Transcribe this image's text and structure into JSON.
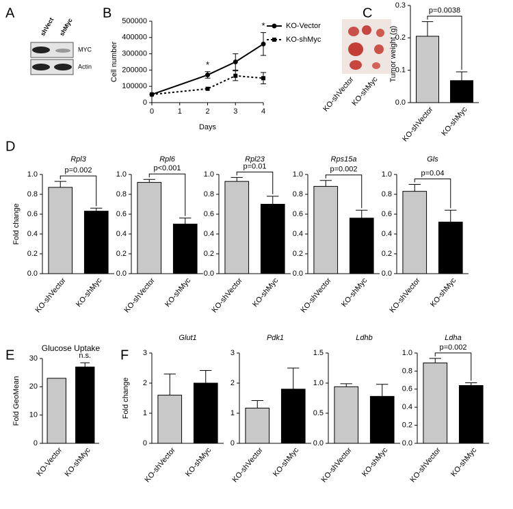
{
  "panel_labels": [
    "A",
    "B",
    "C",
    "D",
    "E",
    "F"
  ],
  "blot": {
    "lanes": [
      "shVect",
      "shMyc"
    ],
    "bands": [
      "MYC",
      "Actin"
    ]
  },
  "photo": {
    "labels": [
      "KO-shVector",
      "KO-shMyc"
    ]
  },
  "chart_data": [
    {
      "type": "line",
      "xlabel": "Days",
      "ylabel": "Cell number",
      "x": [
        0,
        2,
        3,
        4
      ],
      "xlim": [
        0,
        4
      ],
      "xticks": [
        0,
        1,
        2,
        3,
        4
      ],
      "ylim": [
        0,
        500000
      ],
      "yticks": [
        0,
        100000,
        200000,
        300000,
        400000,
        500000
      ],
      "series": [
        {
          "name": "KO-Vector",
          "color": "#000000",
          "values": [
            50000,
            170000,
            250000,
            360000
          ],
          "errors": [
            null,
            20000,
            50000,
            70000
          ]
        },
        {
          "name": "KO-shMyc",
          "color": "#000000",
          "values": [
            50000,
            85000,
            165000,
            150000
          ],
          "errors": [
            null,
            null,
            30000,
            35000
          ]
        }
      ],
      "annotations": [
        {
          "x": 2,
          "text": "*"
        },
        {
          "x": 4,
          "text": "*"
        }
      ]
    },
    {
      "type": "bar",
      "ylabel": "Tumor weight (g)",
      "categories": [
        "KO-shVector",
        "KO-shMyc"
      ],
      "values": [
        0.205,
        0.068
      ],
      "errors": [
        0.045,
        0.027
      ],
      "colors": [
        "#c8c8c8",
        "#000000"
      ],
      "ylim": [
        0,
        0.3
      ],
      "yticks": [
        {
          "value": 0,
          "label": "0.0"
        },
        0.1,
        0.2,
        0.3
      ],
      "annotation": "p=0.0038",
      "bracket": true
    },
    {
      "type": "bar",
      "title": "Rpl3",
      "title_style": "italic",
      "ylabel": "Fold change",
      "categories": [
        "KO-shVector",
        "KO-shMyc"
      ],
      "values": [
        0.87,
        0.63
      ],
      "errors": [
        0.06,
        0.03
      ],
      "colors": [
        "#c8c8c8",
        "#000000"
      ],
      "ylim": [
        0,
        1
      ],
      "yticks": [
        {
          "value": 0,
          "label": "0.0"
        },
        0.2,
        0.4,
        0.6,
        0.8,
        {
          "value": 1,
          "label": "1.0"
        }
      ],
      "annotation": "p=0.002",
      "bracket": true
    },
    {
      "type": "bar",
      "title": "Rpl6",
      "title_style": "italic",
      "categories": [
        "KO-shVector",
        "KO-shMyc"
      ],
      "values": [
        0.92,
        0.5
      ],
      "errors": [
        0.03,
        0.06
      ],
      "colors": [
        "#c8c8c8",
        "#000000"
      ],
      "ylim": [
        0,
        1
      ],
      "yticks": [
        {
          "value": 0,
          "label": "0.0"
        },
        0.2,
        0.4,
        0.6,
        0.8,
        {
          "value": 1,
          "label": "1.0"
        }
      ],
      "annotation": "p<0.001",
      "bracket": true
    },
    {
      "type": "bar",
      "title": "Rpl23",
      "title_style": "italic",
      "categories": [
        "KO-shVector",
        "KO-shMyc"
      ],
      "values": [
        0.93,
        0.7
      ],
      "errors": [
        0.04,
        0.08
      ],
      "colors": [
        "#c8c8c8",
        "#000000"
      ],
      "ylim": [
        0,
        1
      ],
      "yticks": [
        {
          "value": 0,
          "label": "0.0"
        },
        0.2,
        0.4,
        0.6,
        0.8,
        {
          "value": 1,
          "label": "1.0"
        }
      ],
      "annotation": "p=0.01",
      "bracket": true
    },
    {
      "type": "bar",
      "title": "Rps15a",
      "title_style": "italic",
      "categories": [
        "KO-shVector",
        "KO-shMyc"
      ],
      "values": [
        0.88,
        0.56
      ],
      "errors": [
        0.06,
        0.08
      ],
      "colors": [
        "#c8c8c8",
        "#000000"
      ],
      "ylim": [
        0,
        1
      ],
      "yticks": [
        {
          "value": 0,
          "label": "0.0"
        },
        0.2,
        0.4,
        0.6,
        0.8,
        {
          "value": 1,
          "label": "1.0"
        }
      ],
      "annotation": "p=0.002",
      "bracket": true
    },
    {
      "type": "bar",
      "title": "Gls",
      "title_style": "italic",
      "categories": [
        "KO-shVector",
        "KO-shMyc"
      ],
      "values": [
        0.83,
        0.52
      ],
      "errors": [
        0.07,
        0.12
      ],
      "colors": [
        "#c8c8c8",
        "#000000"
      ],
      "ylim": [
        0,
        1
      ],
      "yticks": [
        {
          "value": 0,
          "label": "0.0"
        },
        0.2,
        0.4,
        0.6,
        0.8,
        {
          "value": 1,
          "label": "1.0"
        }
      ],
      "annotation": "p=0.04",
      "bracket": true
    },
    {
      "type": "bar",
      "title": "Glucose Uptake",
      "title_style": "normal",
      "ylabel": "Fold GeoMean",
      "categories": [
        "KO-Vector",
        "KO-shMyc"
      ],
      "values": [
        23,
        27
      ],
      "errors": [
        0,
        1.5
      ],
      "colors": [
        "#c8c8c8",
        "#000000"
      ],
      "ylim": [
        0,
        30
      ],
      "yticks": [
        0,
        10,
        20,
        30
      ],
      "annotation": "n.s.",
      "bracket": false
    },
    {
      "type": "bar",
      "title": "Glut1",
      "title_style": "italic",
      "ylabel": "Fold change",
      "categories": [
        "KO-shVector",
        "KO-shMyc"
      ],
      "values": [
        1.6,
        2.0
      ],
      "errors": [
        0.7,
        0.42
      ],
      "colors": [
        "#c8c8c8",
        "#000000"
      ],
      "ylim": [
        0,
        3
      ],
      "yticks": [
        0,
        1,
        2,
        3
      ]
    },
    {
      "type": "bar",
      "title": "Pdk1",
      "title_style": "italic",
      "categories": [
        "KO-shVector",
        "KO-shMyc"
      ],
      "values": [
        1.17,
        1.8
      ],
      "errors": [
        0.25,
        0.7
      ],
      "colors": [
        "#c8c8c8",
        "#000000"
      ],
      "ylim": [
        0,
        3
      ],
      "yticks": [
        0,
        1,
        2,
        3
      ]
    },
    {
      "type": "bar",
      "title": "Ldhb",
      "title_style": "italic",
      "categories": [
        "KO-shVector",
        "KO-shMyc"
      ],
      "values": [
        0.94,
        0.78
      ],
      "errors": [
        0.05,
        0.2
      ],
      "colors": [
        "#c8c8c8",
        "#000000"
      ],
      "ylim": [
        0,
        1.5
      ],
      "yticks": [
        {
          "value": 0,
          "label": "0.0"
        },
        0.5,
        {
          "value": 1,
          "label": "1.0"
        },
        1.5
      ]
    },
    {
      "type": "bar",
      "title": "Ldha",
      "title_style": "italic",
      "categories": [
        "KO-shVector",
        "KO-shMyc"
      ],
      "values": [
        0.89,
        0.64
      ],
      "errors": [
        0.05,
        0.03
      ],
      "colors": [
        "#c8c8c8",
        "#000000"
      ],
      "ylim": [
        0,
        1
      ],
      "yticks": [
        {
          "value": 0,
          "label": "0.0"
        },
        0.2,
        0.4,
        0.6,
        0.8,
        {
          "value": 1,
          "label": "1.0"
        }
      ],
      "annotation": "p=0.002",
      "bracket": true
    }
  ]
}
